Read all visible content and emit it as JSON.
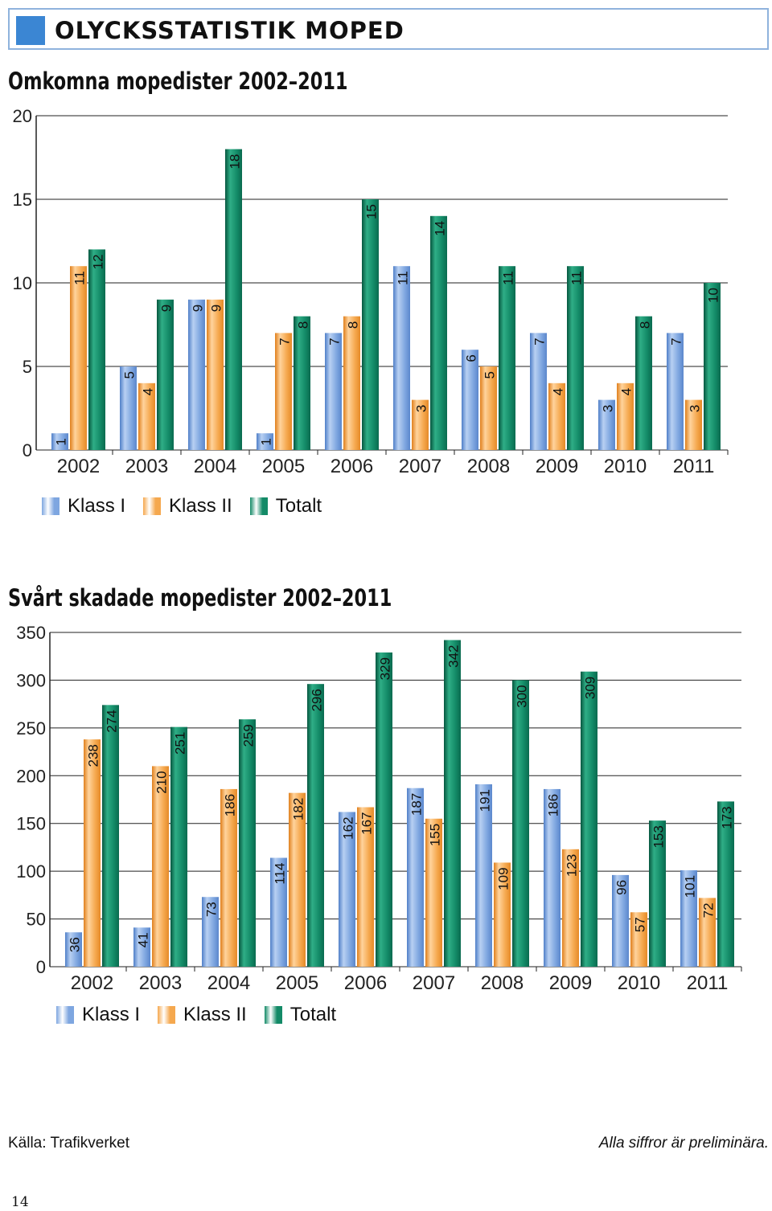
{
  "header": {
    "title": "OLYCKSSTATISTIK MOPED"
  },
  "chart_data": [
    {
      "type": "bar",
      "title": "Omkomna mopedister 2002–2011",
      "categories": [
        "2002",
        "2003",
        "2004",
        "2005",
        "2006",
        "2007",
        "2008",
        "2009",
        "2010",
        "2011"
      ],
      "series": [
        {
          "name": "Klass I",
          "values": [
            1,
            5,
            9,
            1,
            7,
            11,
            6,
            7,
            3,
            7
          ]
        },
        {
          "name": "Klass II",
          "values": [
            11,
            4,
            9,
            7,
            8,
            3,
            5,
            4,
            4,
            3
          ]
        },
        {
          "name": "Totalt",
          "values": [
            12,
            9,
            18,
            8,
            15,
            14,
            11,
            11,
            8,
            10
          ]
        }
      ],
      "yticks": [
        0,
        5,
        10,
        15,
        20
      ],
      "ylim": [
        0,
        20
      ],
      "grid": "horizontal",
      "legend": "bottom-left"
    },
    {
      "type": "bar",
      "title": "Svårt skadade mopedister 2002–2011",
      "categories": [
        "2002",
        "2003",
        "2004",
        "2005",
        "2006",
        "2007",
        "2008",
        "2009",
        "2010",
        "2011"
      ],
      "series": [
        {
          "name": "Klass I",
          "values": [
            36,
            41,
            73,
            114,
            162,
            187,
            191,
            186,
            96,
            101
          ]
        },
        {
          "name": "Klass II",
          "values": [
            238,
            210,
            186,
            182,
            167,
            155,
            109,
            123,
            57,
            72
          ]
        },
        {
          "name": "Totalt",
          "values": [
            274,
            251,
            259,
            296,
            329,
            342,
            300,
            309,
            153,
            173
          ]
        }
      ],
      "yticks": [
        0,
        50,
        100,
        150,
        200,
        250,
        300,
        350
      ],
      "ylim": [
        0,
        350
      ],
      "grid": "horizontal",
      "legend": "bottom-left"
    }
  ],
  "colors": {
    "klass1": "#7ea6e0",
    "klass2": "#f5a84e",
    "totalt": "#138a67",
    "header_square": "#3b86d3",
    "header_border": "#8fb3dd"
  },
  "footer": {
    "source": "Källa: Trafikverket",
    "note": "Alla siffror är preliminära.",
    "page_number": "14"
  }
}
